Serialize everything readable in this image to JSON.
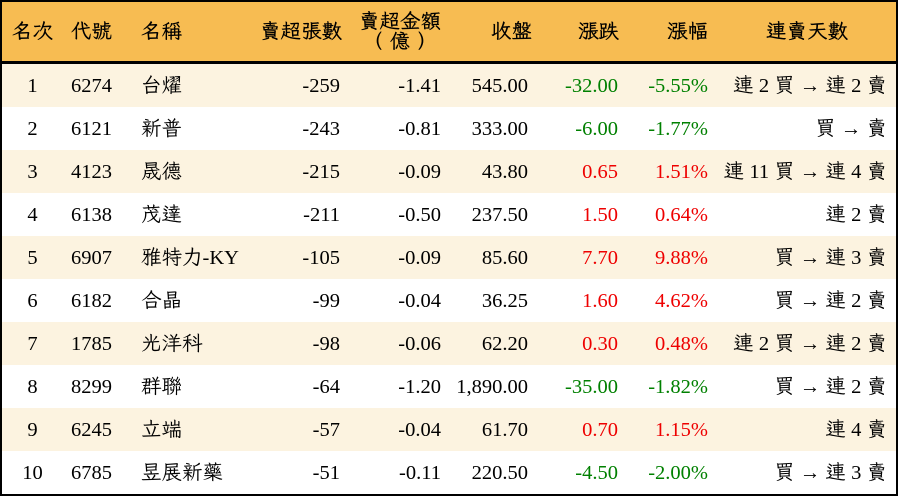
{
  "colors": {
    "header_bg": "#F7BC52",
    "row_odd_bg": "#FCF3E0",
    "row_even_bg": "#FFFFFF",
    "border": "#000000",
    "text": "#000000",
    "up": "#EE0000",
    "down": "#008000"
  },
  "table": {
    "columns": [
      {
        "key": "rank",
        "label": "名次"
      },
      {
        "key": "code",
        "label": "代號"
      },
      {
        "key": "name",
        "label": "名稱"
      },
      {
        "key": "volume",
        "label": "賣超張數"
      },
      {
        "key": "amount",
        "label": "賣超金額（億）",
        "label_lines": [
          "賣超金額",
          "（億）"
        ]
      },
      {
        "key": "close",
        "label": "收盤"
      },
      {
        "key": "change",
        "label": "漲跌"
      },
      {
        "key": "pct",
        "label": "漲幅"
      },
      {
        "key": "streak",
        "label": "連賣天數"
      }
    ],
    "rows": [
      {
        "rank": "1",
        "code": "6274",
        "name": "台燿",
        "volume": "-259",
        "amount": "-1.41",
        "close": "545.00",
        "change": "-32.00",
        "pct": "-5.55%",
        "trend": "down",
        "streak": "連 2 買 → 連 2 賣"
      },
      {
        "rank": "2",
        "code": "6121",
        "name": "新普",
        "volume": "-243",
        "amount": "-0.81",
        "close": "333.00",
        "change": "-6.00",
        "pct": "-1.77%",
        "trend": "down",
        "streak": "買 → 賣"
      },
      {
        "rank": "3",
        "code": "4123",
        "name": "晟德",
        "volume": "-215",
        "amount": "-0.09",
        "close": "43.80",
        "change": "0.65",
        "pct": "1.51%",
        "trend": "up",
        "streak": "連 11 買 → 連 4 賣"
      },
      {
        "rank": "4",
        "code": "6138",
        "name": "茂達",
        "volume": "-211",
        "amount": "-0.50",
        "close": "237.50",
        "change": "1.50",
        "pct": "0.64%",
        "trend": "up",
        "streak": "連 2 賣"
      },
      {
        "rank": "5",
        "code": "6907",
        "name": "雅特力-KY",
        "volume": "-105",
        "amount": "-0.09",
        "close": "85.60",
        "change": "7.70",
        "pct": "9.88%",
        "trend": "up",
        "streak": "買 → 連 3 賣"
      },
      {
        "rank": "6",
        "code": "6182",
        "name": "合晶",
        "volume": "-99",
        "amount": "-0.04",
        "close": "36.25",
        "change": "1.60",
        "pct": "4.62%",
        "trend": "up",
        "streak": "買 → 連 2 賣"
      },
      {
        "rank": "7",
        "code": "1785",
        "name": "光洋科",
        "volume": "-98",
        "amount": "-0.06",
        "close": "62.20",
        "change": "0.30",
        "pct": "0.48%",
        "trend": "up",
        "streak": "連 2 買 → 連 2 賣"
      },
      {
        "rank": "8",
        "code": "8299",
        "name": "群聯",
        "volume": "-64",
        "amount": "-1.20",
        "close": "1,890.00",
        "change": "-35.00",
        "pct": "-1.82%",
        "trend": "down",
        "streak": "買 → 連 2 賣"
      },
      {
        "rank": "9",
        "code": "6245",
        "name": "立端",
        "volume": "-57",
        "amount": "-0.04",
        "close": "61.70",
        "change": "0.70",
        "pct": "1.15%",
        "trend": "up",
        "streak": "連 4 賣"
      },
      {
        "rank": "10",
        "code": "6785",
        "name": "昱展新藥",
        "volume": "-51",
        "amount": "-0.11",
        "close": "220.50",
        "change": "-4.50",
        "pct": "-2.00%",
        "trend": "down",
        "streak": "買 → 連 3 賣"
      }
    ]
  },
  "chart_data": {
    "type": "table",
    "columns": [
      "名次",
      "代號",
      "名稱",
      "賣超張數",
      "賣超金額（億）",
      "收盤",
      "漲跌",
      "漲幅",
      "連賣天數"
    ],
    "rows": [
      [
        "1",
        "6274",
        "台燿",
        "-259",
        "-1.41",
        "545.00",
        "-32.00",
        "-5.55%",
        "連 2 買 → 連 2 賣"
      ],
      [
        "2",
        "6121",
        "新普",
        "-243",
        "-0.81",
        "333.00",
        "-6.00",
        "-1.77%",
        "買 → 賣"
      ],
      [
        "3",
        "4123",
        "晟德",
        "-215",
        "-0.09",
        "43.80",
        "0.65",
        "1.51%",
        "連 11 買 → 連 4 賣"
      ],
      [
        "4",
        "6138",
        "茂達",
        "-211",
        "-0.50",
        "237.50",
        "1.50",
        "0.64%",
        "連 2 賣"
      ],
      [
        "5",
        "6907",
        "雅特力-KY",
        "-105",
        "-0.09",
        "85.60",
        "7.70",
        "9.88%",
        "買 → 連 3 賣"
      ],
      [
        "6",
        "6182",
        "合晶",
        "-99",
        "-0.04",
        "36.25",
        "1.60",
        "4.62%",
        "買 → 連 2 賣"
      ],
      [
        "7",
        "1785",
        "光洋科",
        "-98",
        "-0.06",
        "62.20",
        "0.30",
        "0.48%",
        "連 2 買 → 連 2 賣"
      ],
      [
        "8",
        "8299",
        "群聯",
        "-64",
        "-1.20",
        "1,890.00",
        "-35.00",
        "-1.82%",
        "買 → 連 2 賣"
      ],
      [
        "9",
        "6245",
        "立端",
        "-57",
        "-0.04",
        "61.70",
        "0.70",
        "1.15%",
        "連 4 賣"
      ],
      [
        "10",
        "6785",
        "昱展新藥",
        "-51",
        "-0.11",
        "220.50",
        "-4.50",
        "-2.00%",
        "買 → 連 3 賣"
      ]
    ],
    "value_colors": {
      "漲跌": [
        "down",
        "down",
        "up",
        "up",
        "up",
        "up",
        "up",
        "down",
        "up",
        "down"
      ],
      "漲幅": [
        "down",
        "down",
        "up",
        "up",
        "up",
        "up",
        "up",
        "down",
        "up",
        "down"
      ]
    },
    "color_legend": {
      "up": "red (#EE0000)",
      "down": "green (#008000)"
    },
    "layout": {
      "header_fill": "#F7BC52",
      "zebra_fill_odd_rows": "#FCF3E0",
      "outer_border": "2px solid black",
      "header_separator": "3px solid black",
      "grid": "off",
      "alignment": {
        "名次": "center",
        "代號": "center",
        "名稱": "left",
        "賣超張數": "right",
        "賣超金額（億）": "right",
        "收盤": "right",
        "漲跌": "right",
        "漲幅": "right",
        "連賣天數": "right"
      }
    }
  }
}
